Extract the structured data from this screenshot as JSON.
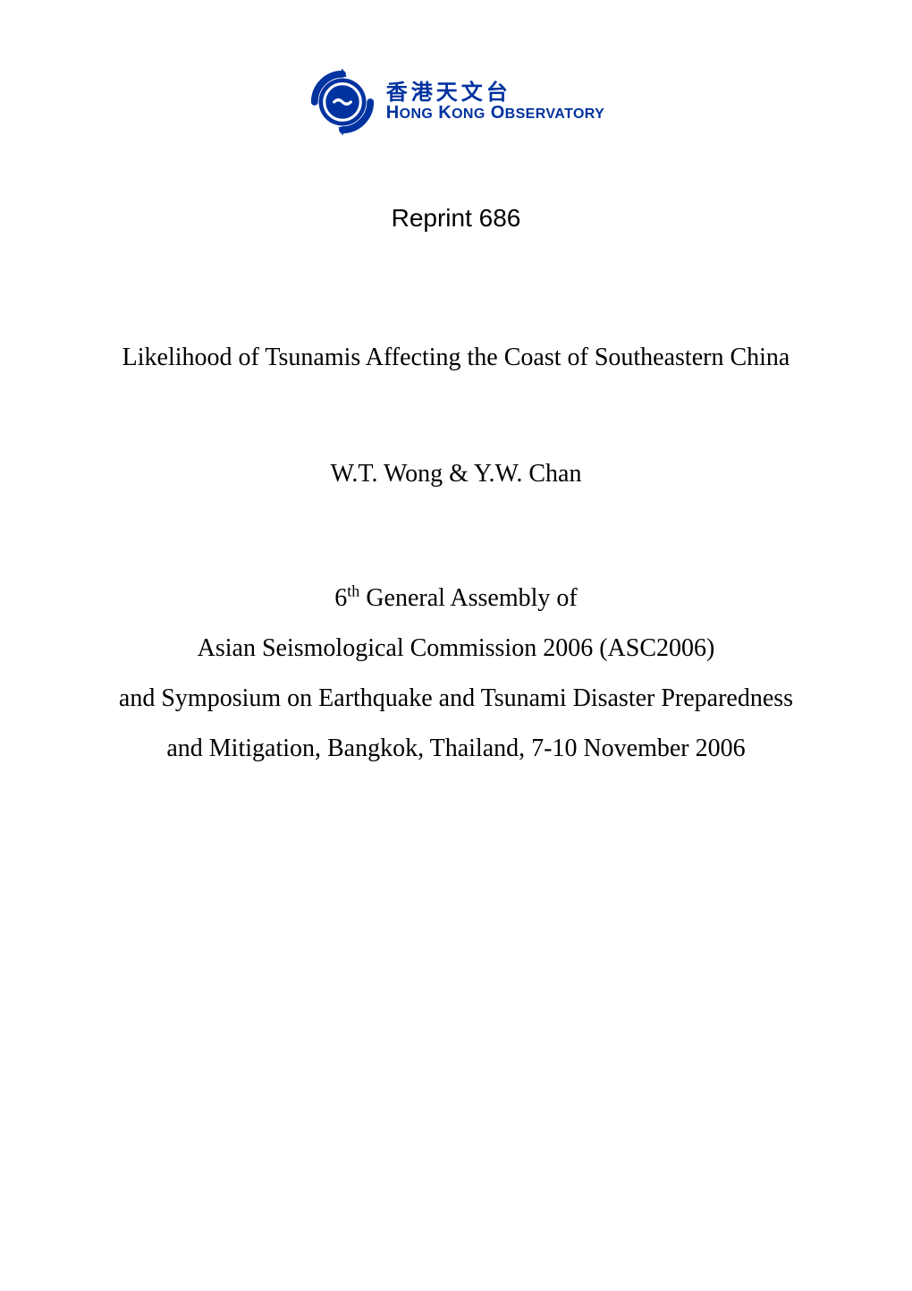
{
  "logo": {
    "cn_text": "香港天文台",
    "en_text_html": "H<span class=\"sm\">ONG</span> K<span class=\"sm\">ONG</span> O<span class=\"sm\">BSERVATORY</span>",
    "icon_color_primary": "#0033a0",
    "icon_color_arc": "#004b9f",
    "text_color": "#0033a0"
  },
  "reprint_label": "Reprint 686",
  "title": "Likelihood of Tsunamis Affecting the Coast of Southeastern China",
  "authors": "W.T. Wong & Y.W. Chan",
  "venue": {
    "line1_html": "6<span class=\"sup\">th</span> General Assembly of",
    "line2": "Asian Seismological Commission 2006 (ASC2006)",
    "line3": "and Symposium on Earthquake and Tsunami Disaster Preparedness",
    "line4": "and Mitigation, Bangkok, Thailand, 7-10 November 2006"
  },
  "style": {
    "page_bg": "#ffffff",
    "text_color": "#000000",
    "reprint_font": "Arial",
    "body_font": "Times New Roman",
    "reprint_fontsize": 28,
    "title_fontsize": 28,
    "authors_fontsize": 28,
    "venue_fontsize": 28,
    "logo_cn_fontsize": 24,
    "logo_en_fontsize": 20
  }
}
